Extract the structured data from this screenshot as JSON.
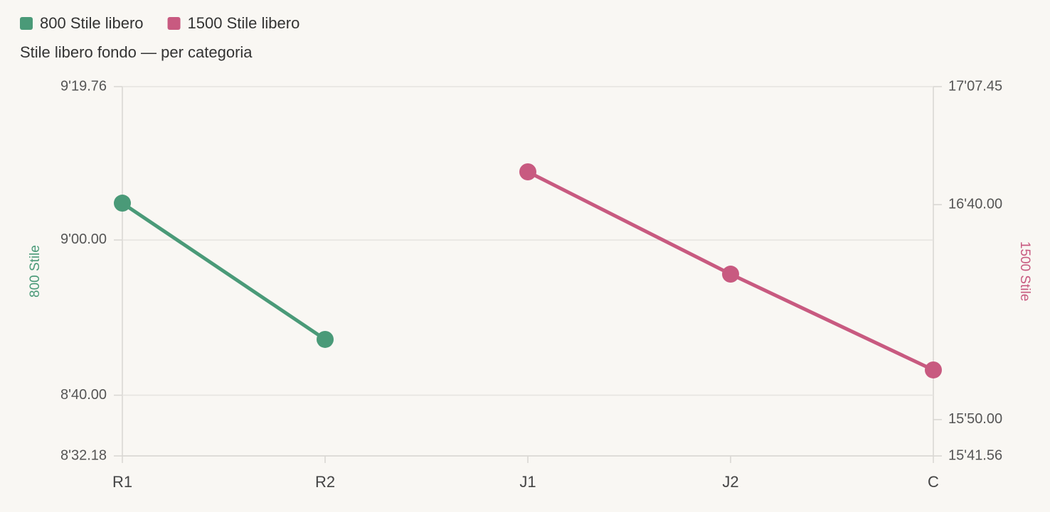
{
  "chart_data": {
    "type": "line",
    "title": "Stile libero fondo — per categoria",
    "categories": [
      "R1",
      "R2",
      "J1",
      "J2",
      "C"
    ],
    "ylabel": "800 Stile",
    "y2label": "1500 Stile",
    "ylim": [
      512.18,
      559.76
    ],
    "yticks": [
      {
        "value": 512.18,
        "label": "8'32.18"
      },
      {
        "value": 520,
        "label": "8'40.00"
      },
      {
        "value": 540,
        "label": "9'00.00"
      },
      {
        "value": 559.76,
        "label": "9'19.76"
      }
    ],
    "y2lim": [
      941.56,
      1027.45
    ],
    "y2ticks": [
      {
        "value": 941.56,
        "label": "15'41.56"
      },
      {
        "value": 950,
        "label": "15'50.00"
      },
      {
        "value": 1000,
        "label": "16'40.00"
      },
      {
        "value": 1027.45,
        "label": "17'07.45"
      }
    ],
    "grid": true,
    "series": [
      {
        "name": "800 Stile libero",
        "color": "#4a9a78",
        "values": [
          544.75,
          527.19,
          null,
          null,
          null
        ]
      },
      {
        "name": "1500 Stile libero",
        "color": "#c85a80",
        "axis": "y2",
        "values": [
          null,
          null,
          1007.63,
          983.84,
          961.55
        ]
      }
    ]
  }
}
